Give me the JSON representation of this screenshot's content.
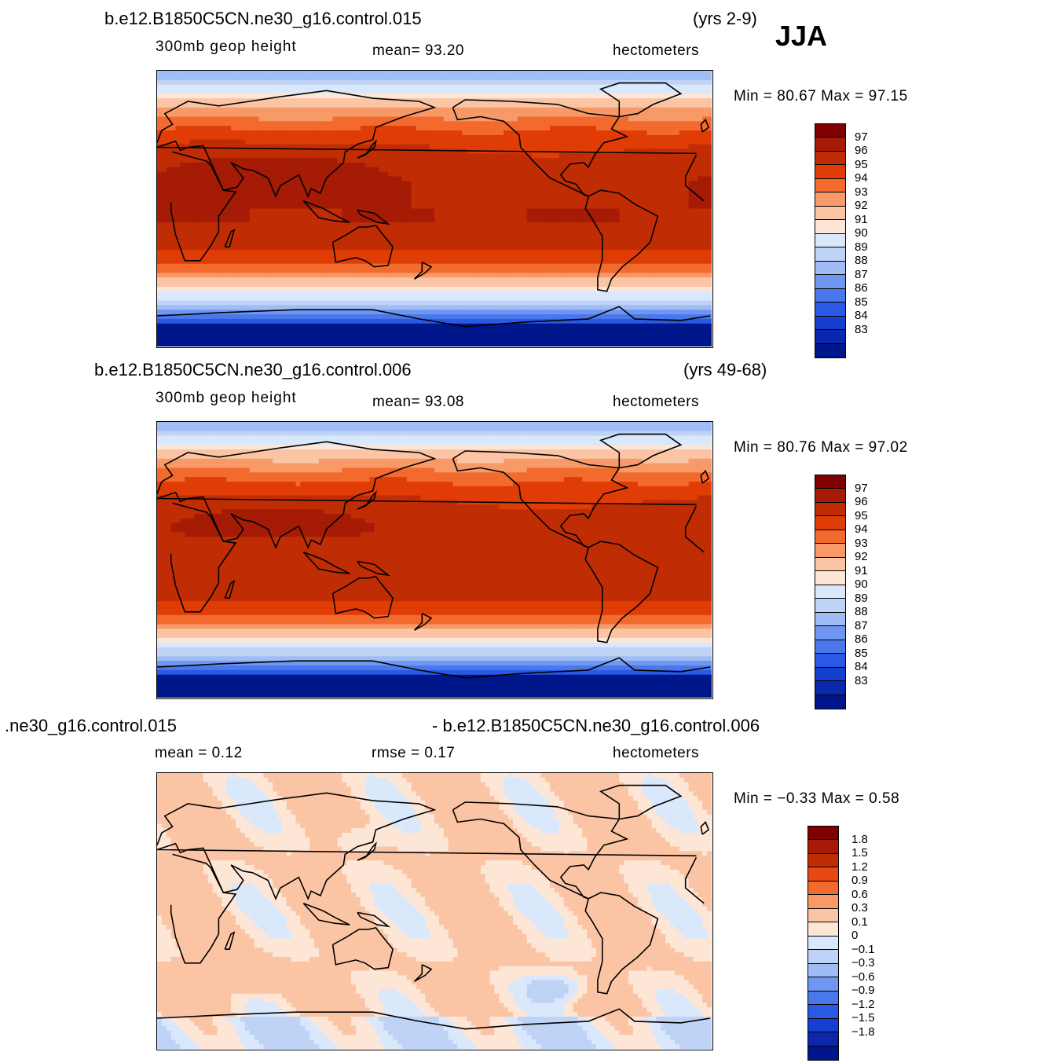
{
  "season": "JJA",
  "colors": {
    "coast": "#000000",
    "abs_scale": [
      "#7f0000",
      "#a51b05",
      "#c02d05",
      "#e03c06",
      "#f26a2d",
      "#f79a67",
      "#fbc5a5",
      "#fde6d6",
      "#d9e8fb",
      "#bfd3f7",
      "#9fbcf5",
      "#6f97f1",
      "#4a78ec",
      "#2a59e3",
      "#143fcf",
      "#0a27ad",
      "#00178c"
    ],
    "diff_scale": [
      "#7f0000",
      "#a51b05",
      "#c02d05",
      "#e64a12",
      "#f26a2d",
      "#f79a67",
      "#fbc5a5",
      "#fde6d6",
      "#d9e8fb",
      "#bfd3f7",
      "#9fbcf5",
      "#6f97f1",
      "#4a78ec",
      "#2a59e3",
      "#143fcf",
      "#0a27ad",
      "#00178c"
    ]
  },
  "panels": [
    {
      "case_name": "b.e12.B1850C5CN.ne30_g16.control.015",
      "years": "(yrs 2-9)",
      "variable": "300mb  geop  height",
      "stat_text": "mean=   93.20",
      "units": "hectometers",
      "minmax": "Min =   80.67  Max =   97.15",
      "colorbar_labels": [
        "97",
        "96",
        "95",
        "94",
        "93",
        "92",
        "91",
        "90",
        "89",
        "88",
        "87",
        "86",
        "85",
        "84",
        "83"
      ]
    },
    {
      "case_name": "b.e12.B1850C5CN.ne30_g16.control.006",
      "years": "(yrs 49-68)",
      "variable": "300mb  geop  height",
      "stat_text": "mean=   93.08",
      "units": "hectometers",
      "minmax": "Min =   80.76  Max =   97.02",
      "colorbar_labels": [
        "97",
        "96",
        "95",
        "94",
        "93",
        "92",
        "91",
        "90",
        "89",
        "88",
        "87",
        "86",
        "85",
        "84",
        "83"
      ]
    },
    {
      "case_name": ".ne30_g16.control.015",
      "case_name_2": "- b.e12.B1850C5CN.ne30_g16.control.006",
      "stat_mean": "mean =    0.12",
      "stat_rmse": "rmse =    0.17",
      "units": "hectometers",
      "minmax": "Min =   −0.33  Max =     0.58",
      "colorbar_labels": [
        "1.8",
        "1.5",
        "1.2",
        "0.9",
        "0.6",
        "0.3",
        "0.1",
        "0",
        "−0.1",
        "−0.3",
        "−0.6",
        "−0.9",
        "−1.2",
        "−1.5",
        "−1.8"
      ]
    }
  ]
}
